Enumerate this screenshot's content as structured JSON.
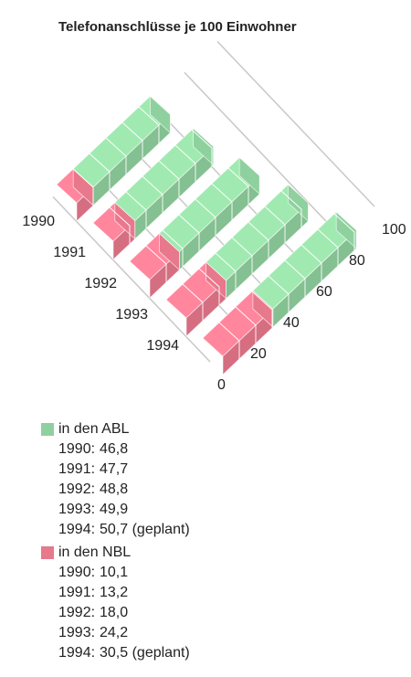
{
  "chart_data": {
    "type": "bar3d",
    "title": "Telefonanschlüsse je 100 Einwohner",
    "categories": [
      "1990",
      "1991",
      "1992",
      "1993",
      "1994"
    ],
    "legend_keys": [
      "1990:",
      "1991:",
      "1992:",
      "1993:",
      "1994:"
    ],
    "series": [
      {
        "name": "in den ABL",
        "color": "#8fd19e",
        "values": [
          46.8,
          47.7,
          48.8,
          49.9,
          50.7
        ],
        "value_labels": [
          "46,8",
          "47,7",
          "48,8",
          "49,9",
          "50,7 (geplant)"
        ]
      },
      {
        "name": "in den NBL",
        "color": "#e8788c",
        "values": [
          10.1,
          13.2,
          18.0,
          24.2,
          30.5
        ],
        "value_labels": [
          "10,1",
          "13,2",
          "18,0",
          "24,2",
          "30,5 (geplant)"
        ]
      }
    ],
    "ylim": [
      0,
      100
    ],
    "yticks": [
      0,
      20,
      40,
      60,
      80,
      100
    ],
    "grid": true
  }
}
